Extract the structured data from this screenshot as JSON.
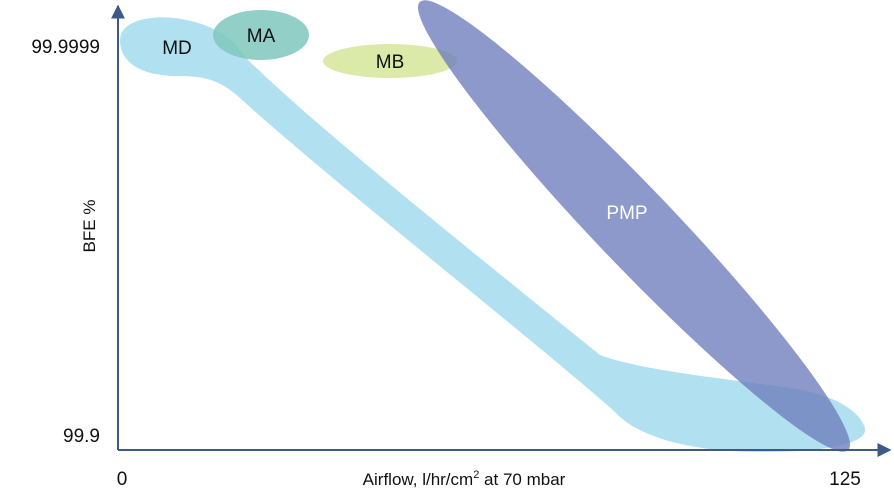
{
  "chart_data": {
    "type": "diagram",
    "xlabel": {
      "prefix": "Airflow, l/hr/cm",
      "sup": "2",
      "suffix": " at 70 mbar"
    },
    "ylabel": "BFE %",
    "x_ticks": [
      "0",
      "125"
    ],
    "y_ticks": [
      "99.9999",
      "99.9"
    ],
    "regions": [
      {
        "label": "MD",
        "color": "#a8def0"
      },
      {
        "label": "MA",
        "color": "#7fc8bd"
      },
      {
        "label": "MB",
        "color": "#d5e69a"
      },
      {
        "label": "PMP",
        "color": "#6f7fbd"
      }
    ],
    "axis_color": "#3d5a86",
    "grid": false,
    "legend": "none"
  }
}
